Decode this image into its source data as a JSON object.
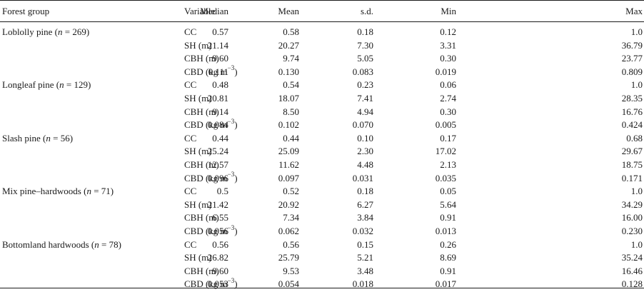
{
  "table": {
    "headers": {
      "group": "Forest group",
      "variable": "Variable",
      "median": "Median",
      "mean": "Mean",
      "sd": "s.d.",
      "min": "Min",
      "max": "Max"
    },
    "groups": [
      {
        "name_prefix": "Loblolly pine (",
        "n_symbol": "n",
        "name_suffix": " = 269)",
        "rows": [
          {
            "variable": "CC",
            "median": "0.57",
            "mean": "0.58",
            "sd": "0.18",
            "min": "0.12",
            "max": "1.0"
          },
          {
            "variable": "SH (m)",
            "median": "21.14",
            "mean": "20.27",
            "sd": "7.30",
            "min": "3.31",
            "max": "36.79"
          },
          {
            "variable": "CBH (m)",
            "median": "9.60",
            "mean": "9.74",
            "sd": "5.05",
            "min": "0.30",
            "max": "23.77"
          },
          {
            "variable": "CBD (kg m",
            "variable_sup": "−3",
            "variable_end": ")",
            "median": "0.111",
            "mean": "0.130",
            "sd": "0.083",
            "min": "0.019",
            "max": "0.809"
          }
        ]
      },
      {
        "name_prefix": "Longleaf pine (",
        "n_symbol": "n",
        "name_suffix": " = 129)",
        "rows": [
          {
            "variable": "CC",
            "median": "0.48",
            "mean": "0.54",
            "sd": "0.23",
            "min": "0.06",
            "max": "1.0"
          },
          {
            "variable": "SH (m)",
            "median": "20.81",
            "mean": "18.07",
            "sd": "7.41",
            "min": "2.74",
            "max": "28.35"
          },
          {
            "variable": "CBH (m)",
            "median": "9.14",
            "mean": "8.50",
            "sd": "4.94",
            "min": "0.30",
            "max": "16.76"
          },
          {
            "variable": "CBD (kg m",
            "variable_sup": "−3",
            "variable_end": ")",
            "median": "0.084",
            "mean": "0.102",
            "sd": "0.070",
            "min": "0.005",
            "max": "0.424"
          }
        ]
      },
      {
        "name_prefix": "Slash pine (",
        "n_symbol": "n",
        "name_suffix": " = 56)",
        "rows": [
          {
            "variable": "CC",
            "median": "0.44",
            "mean": "0.44",
            "sd": "0.10",
            "min": "0.17",
            "max": "0.68"
          },
          {
            "variable": "SH (m)",
            "median": "25.24",
            "mean": "25.09",
            "sd": "2.30",
            "min": "17.02",
            "max": "29.67"
          },
          {
            "variable": "CBH (m)",
            "median": "12.57",
            "mean": "11.62",
            "sd": "4.48",
            "min": "2.13",
            "max": "18.75"
          },
          {
            "variable": "CBD (kg m",
            "variable_sup": "−3",
            "variable_end": ")",
            "median": "0.096",
            "mean": "0.097",
            "sd": "0.031",
            "min": "0.035",
            "max": "0.171"
          }
        ]
      },
      {
        "name_prefix": "Mix pine–hardwoods (",
        "n_symbol": "n",
        "name_suffix": " = 71)",
        "rows": [
          {
            "variable": "CC",
            "median": "0.5",
            "mean": "0.52",
            "sd": "0.18",
            "min": "0.05",
            "max": "1.0"
          },
          {
            "variable": "SH (m)",
            "median": "21.42",
            "mean": "20.92",
            "sd": "6.27",
            "min": "5.64",
            "max": "34.29"
          },
          {
            "variable": "CBH (m)",
            "median": "6.55",
            "mean": "7.34",
            "sd": "3.84",
            "min": "0.91",
            "max": "16.00"
          },
          {
            "variable": "CBD (kg m",
            "variable_sup": "−3",
            "variable_end": ")",
            "median": "0.056",
            "mean": "0.062",
            "sd": "0.032",
            "min": "0.013",
            "max": "0.230"
          }
        ]
      },
      {
        "name_prefix": "Bottomland hardwoods (",
        "n_symbol": "n",
        "name_suffix": " = 78)",
        "rows": [
          {
            "variable": "CC",
            "median": "0.56",
            "mean": "0.56",
            "sd": "0.15",
            "min": "0.26",
            "max": "1.0"
          },
          {
            "variable": "SH (m)",
            "median": "26.82",
            "mean": "25.79",
            "sd": "5.21",
            "min": "8.69",
            "max": "35.24"
          },
          {
            "variable": "CBH (m)",
            "median": "9.60",
            "mean": "9.53",
            "sd": "3.48",
            "min": "0.91",
            "max": "16.46"
          },
          {
            "variable": "CBD (kg m",
            "variable_sup": "−3",
            "variable_end": ")",
            "median": "0.053",
            "mean": "0.054",
            "sd": "0.018",
            "min": "0.017",
            "max": "0.128"
          }
        ]
      }
    ]
  }
}
